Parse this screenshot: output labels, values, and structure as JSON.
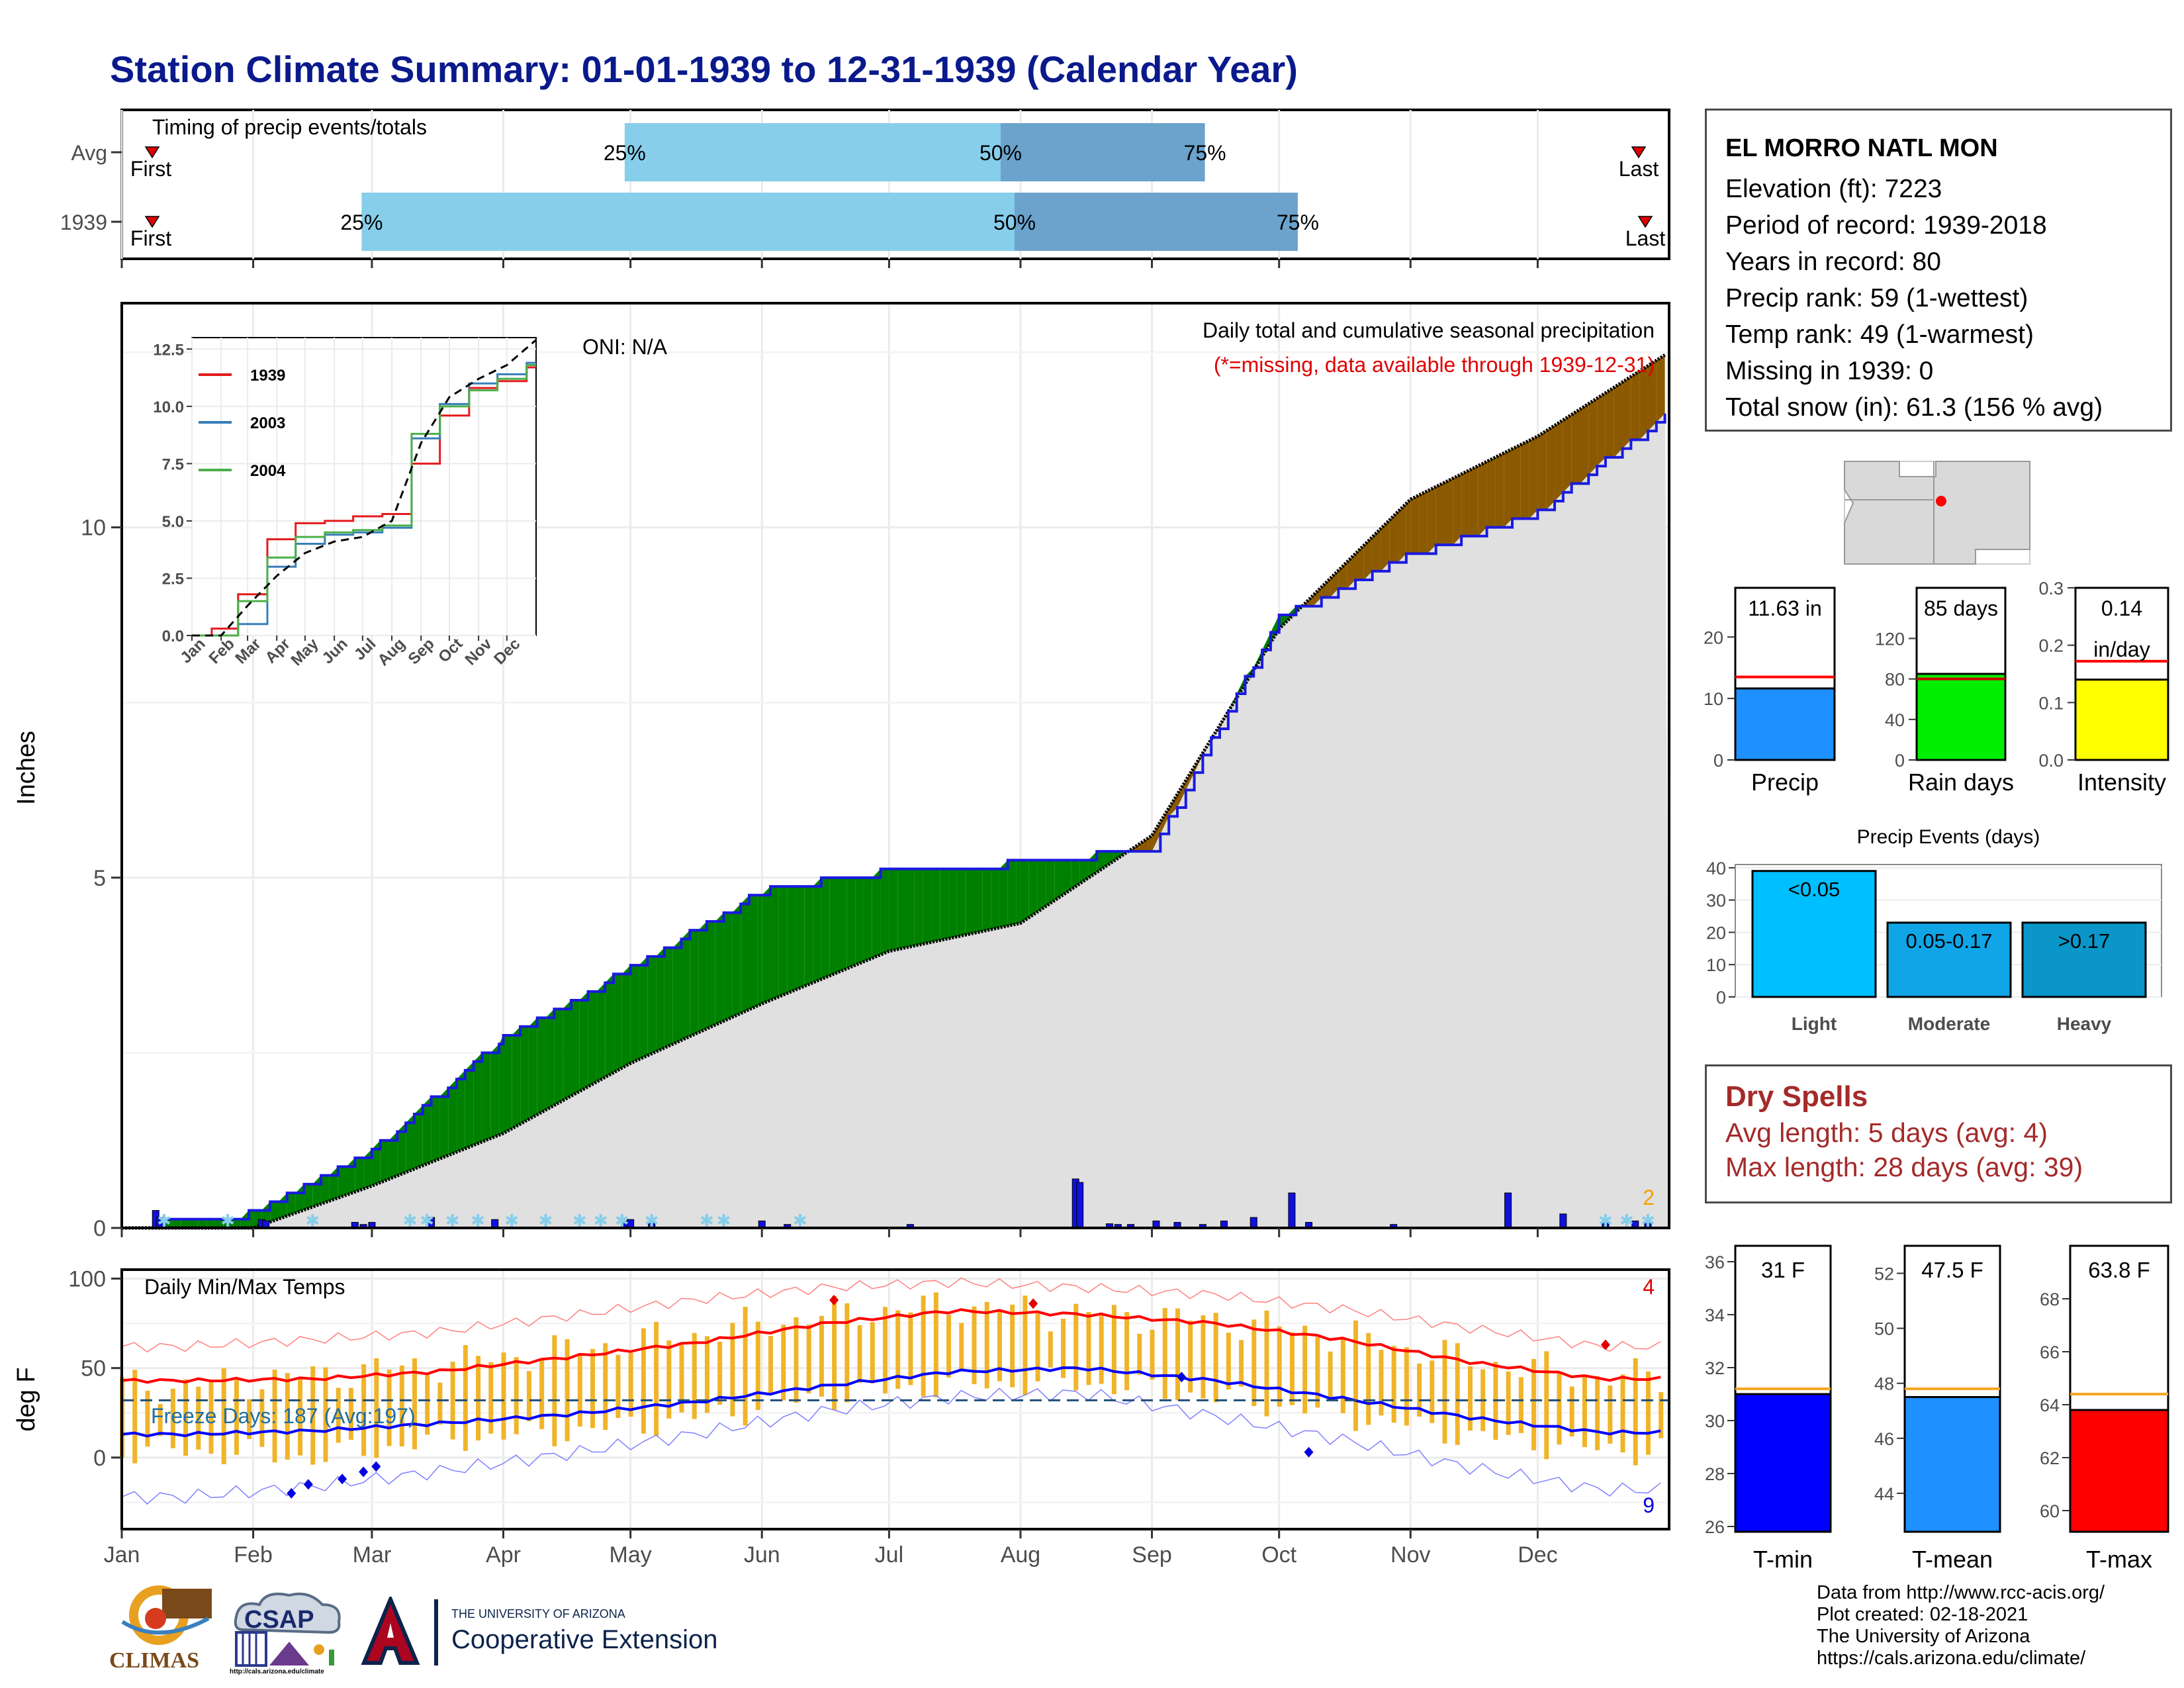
{
  "title": "Station Climate Summary: 01-01-1939 to 12-31-1939 (Calendar Year)",
  "colors": {
    "title": "#0a1a8c",
    "wet_fill": "#008000",
    "dry_fill": "#8b5a00",
    "avg_area": "#e0e0e0",
    "avg_line": "#000000",
    "obs_line": "#1a1adf",
    "tmax_avg": "#ff0000",
    "tmin_avg": "#0000ff",
    "temp_bars": "#f0b429",
    "freeze_line": "#1f4e79",
    "light_blue": "#87ceeb",
    "dark_blue": "#6ba3cc",
    "dry_spells": "#a52a2a"
  },
  "timing": {
    "label": "Timing of precip events/totals",
    "rows": [
      {
        "name": "Avg",
        "p25": 0.325,
        "p50": 0.568,
        "p75": 0.7,
        "first_label": "First",
        "last_label": "Last"
      },
      {
        "name": "1939",
        "p25": 0.155,
        "p50": 0.577,
        "p75": 0.76,
        "first_label": "First",
        "last_label": "Last"
      }
    ],
    "pct_labels": [
      "25%",
      "50%",
      "75%"
    ]
  },
  "station": {
    "name": "EL MORRO NATL MON",
    "lines": [
      "Elevation (ft): 7223",
      "Period of record: 1939-2018",
      "Years in record: 80",
      "Precip rank: 59 (1-wettest)",
      "Temp rank: 49 (1-warmest)",
      "Missing in 1939: 0",
      "Total snow (in): 61.3 (156 % avg)"
    ]
  },
  "precip_panel": {
    "ylabel": "Inches",
    "oni": "ONI: N/A",
    "heading": "Daily total and cumulative seasonal precipitation",
    "missing_note": "(*=missing, data available through 1939-12-31)",
    "corner_count": "2",
    "y_ticks": [
      0,
      5,
      10
    ]
  },
  "inset": {
    "y_ticks": [
      "0.0",
      "2.5",
      "5.0",
      "7.5",
      "10.0",
      "12.5"
    ],
    "x_ticks": [
      "Jan",
      "Feb",
      "Mar",
      "Apr",
      "May",
      "Jun",
      "Jul",
      "Aug",
      "Sep",
      "Oct",
      "Nov",
      "Dec"
    ],
    "legend": [
      {
        "name": "1939",
        "color": "#e41a1c"
      },
      {
        "name": "2003",
        "color": "#377eb8"
      },
      {
        "name": "2004",
        "color": "#4daf4a"
      }
    ]
  },
  "temp_panel": {
    "ylabel": "deg F",
    "label": "Daily Min/Max Temps",
    "freeze_label": "Freeze Days: 187 (Avg:197)",
    "record_high_count": "4",
    "record_low_count": "9",
    "y_ticks": [
      0,
      50,
      100
    ]
  },
  "months": [
    "Jan",
    "Feb",
    "Mar",
    "Apr",
    "May",
    "Jun",
    "Jul",
    "Aug",
    "Sep",
    "Oct",
    "Nov",
    "Dec"
  ],
  "summary_bars": [
    {
      "label": "Precip",
      "value_text": "11.63 in",
      "value": 11.63,
      "avg": 13.5,
      "ymax": 28,
      "ticks": [
        "0",
        "10",
        "20"
      ],
      "tick_vals": [
        0,
        10,
        20
      ],
      "color": "#1e90ff",
      "avg_color": "#ff0000"
    },
    {
      "label": "Rain days",
      "value_text": "85 days",
      "value": 85,
      "avg": 80,
      "ymax": 170,
      "ticks": [
        "0",
        "40",
        "80",
        "120"
      ],
      "tick_vals": [
        0,
        40,
        80,
        120
      ],
      "color": "#00ee00",
      "avg_color": "#cc0000"
    },
    {
      "label": "Intensity",
      "value_text": "0.14",
      "value_text2": "in/day",
      "value": 0.14,
      "avg": 0.172,
      "ymax": 0.3,
      "ticks": [
        "0.0",
        "0.1",
        "0.2",
        "0.3"
      ],
      "tick_vals": [
        0,
        0.1,
        0.2,
        0.3
      ],
      "color": "#ffff00",
      "avg_color": "#ff0000"
    }
  ],
  "events": {
    "title": "Precip Events (days)",
    "ticks": [
      "0",
      "10",
      "20",
      "30",
      "40"
    ],
    "bars": [
      {
        "label": "Light",
        "range": "<0.05",
        "value": 39,
        "color": "#00bfff"
      },
      {
        "label": "Moderate",
        "range": "0.05-0.17",
        "value": 23,
        "color": "#0fa5e6"
      },
      {
        "label": "Heavy",
        "range": ">0.17",
        "value": 23,
        "color": "#0a96c8"
      }
    ]
  },
  "dry_spells": {
    "title": "Dry Spells",
    "avg_length": "Avg length: 5 days (avg: 4)",
    "max_length": "Max length: 28 days (avg: 39)"
  },
  "temp_bars": [
    {
      "label": "T-min",
      "value_text": "31 F",
      "value": 31.0,
      "avg": 31.2,
      "ymin": 25.8,
      "ymax": 36.6,
      "ticks": [
        "26",
        "28",
        "30",
        "32",
        "34",
        "36"
      ],
      "tick_vals": [
        26,
        28,
        30,
        32,
        34,
        36
      ],
      "color": "#0000ff"
    },
    {
      "label": "T-mean",
      "value_text": "47.5 F",
      "value": 47.5,
      "avg": 47.8,
      "ymin": 42.6,
      "ymax": 53.0,
      "ticks": [
        "44",
        "46",
        "48",
        "50",
        "52"
      ],
      "tick_vals": [
        44,
        46,
        48,
        50,
        52
      ],
      "color": "#1e90ff"
    },
    {
      "label": "T-max",
      "value_text": "63.8 F",
      "value": 63.8,
      "avg": 64.4,
      "ymin": 59.2,
      "ymax": 70.0,
      "ticks": [
        "60",
        "62",
        "64",
        "66",
        "68"
      ],
      "tick_vals": [
        60,
        62,
        64,
        66,
        68
      ],
      "color": "#ff0000"
    }
  ],
  "logos": {
    "climas": "CLIMAS",
    "csap": "CSAP",
    "csap_url": "http://cals.arizona.edu/climate",
    "ua_small": "THE UNIVERSITY OF ARIZONA",
    "ua_big": "Cooperative Extension"
  },
  "footer": [
    "Data from http://www.rcc-acis.org/",
    "Plot created: 02-18-2021",
    "The University of Arizona",
    "https://cals.arizona.edu/climate/"
  ],
  "chart_data": [
    {
      "type": "area",
      "title": "Daily total and cumulative seasonal precipitation",
      "ylabel": "Inches",
      "ylim": [
        0,
        13.2
      ],
      "x": [
        "Jan",
        "Feb",
        "Mar",
        "Apr",
        "May",
        "Jun",
        "Jul",
        "Aug",
        "Sep",
        "Oct",
        "Nov",
        "Dec"
      ],
      "series": [
        {
          "name": "1939",
          "values": [
            0.2,
            1.1,
            2.7,
            3.7,
            4.8,
            5.1,
            5.2,
            5.4,
            8.7,
            9.6,
            10.2,
            11.63
          ]
        },
        {
          "name": "Avg",
          "values": [
            0.0,
            0.6,
            1.35,
            2.35,
            3.2,
            3.95,
            4.35,
            5.6,
            8.55,
            10.4,
            11.3,
            12.5
          ]
        }
      ],
      "daily_events": {
        "days": [
          8,
          9,
          33,
          34,
          55,
          57,
          59,
          73,
          88,
          119,
          120,
          125,
          151,
          157,
          186,
          225,
          226,
          233,
          235,
          238,
          244,
          249,
          255,
          260,
          267,
          276,
          280,
          300,
          327,
          340,
          350,
          357,
          360
        ],
        "values": [
          0.25,
          0.15,
          0.12,
          0.1,
          0.08,
          0.05,
          0.08,
          0.15,
          0.12,
          0.1,
          0.12,
          0.08,
          0.1,
          0.05,
          0.05,
          0.7,
          0.65,
          0.06,
          0.05,
          0.05,
          0.1,
          0.08,
          0.05,
          0.1,
          0.15,
          0.5,
          0.08,
          0.05,
          0.5,
          0.2,
          0.08,
          0.1,
          0.08
        ]
      }
    },
    {
      "type": "line",
      "title": "Daily Min/Max Temps",
      "ylabel": "deg F",
      "ylim": [
        -40,
        105
      ],
      "x": [
        "Jan",
        "Feb",
        "Mar",
        "Apr",
        "May",
        "Jun",
        "Jul",
        "Aug",
        "Sep",
        "Oct",
        "Nov",
        "Dec"
      ],
      "series": [
        {
          "name": "Avg Tmax",
          "values": [
            43,
            44,
            48,
            56,
            64,
            75,
            82,
            80,
            75,
            66,
            53,
            44
          ]
        },
        {
          "name": "Avg Tmin",
          "values": [
            13,
            15,
            19,
            24,
            31,
            40,
            48,
            50,
            43,
            33,
            22,
            14
          ]
        },
        {
          "name": "Record Tmax",
          "values": [
            62,
            66,
            70,
            79,
            88,
            95,
            98,
            95,
            91,
            83,
            72,
            62
          ]
        },
        {
          "name": "Record Tmin",
          "values": [
            -22,
            -16,
            -8,
            2,
            13,
            26,
            34,
            36,
            23,
            10,
            -6,
            -18
          ]
        },
        {
          "name": "1939 Tmax",
          "values": [
            40,
            46,
            52,
            60,
            69,
            80,
            85,
            80,
            77,
            68,
            54,
            45
          ]
        },
        {
          "name": "1939 Tmin",
          "values": [
            12,
            8,
            18,
            22,
            30,
            42,
            49,
            50,
            42,
            32,
            20,
            12
          ]
        }
      ]
    },
    {
      "type": "line",
      "title": "",
      "x": [
        "Jan",
        "Feb",
        "Mar",
        "Apr",
        "May",
        "Jun",
        "Jul",
        "Aug",
        "Sep",
        "Oct",
        "Nov",
        "Dec"
      ],
      "ylim": [
        0,
        13
      ],
      "series": [
        {
          "name": "1939",
          "values": [
            0.3,
            1.8,
            4.2,
            4.9,
            5.0,
            5.2,
            5.3,
            7.5,
            9.6,
            10.8,
            11.1,
            11.7
          ]
        },
        {
          "name": "2003",
          "values": [
            0.0,
            0.5,
            3.0,
            4.0,
            4.4,
            4.5,
            4.7,
            8.6,
            10.1,
            11.0,
            11.4,
            11.9
          ]
        },
        {
          "name": "2004",
          "values": [
            0.0,
            1.5,
            3.4,
            4.3,
            4.5,
            4.6,
            4.8,
            8.8,
            10.0,
            10.7,
            11.2,
            11.8
          ]
        },
        {
          "name": "Avg",
          "values": [
            0.0,
            1.3,
            2.6,
            3.6,
            4.1,
            4.3,
            5.0,
            8.4,
            10.4,
            11.2,
            11.8,
            12.9
          ]
        }
      ]
    },
    {
      "type": "bar",
      "title": "Precip Events (days)",
      "categories": [
        "Light",
        "Moderate",
        "Heavy"
      ],
      "values": [
        39,
        23,
        23
      ]
    }
  ]
}
